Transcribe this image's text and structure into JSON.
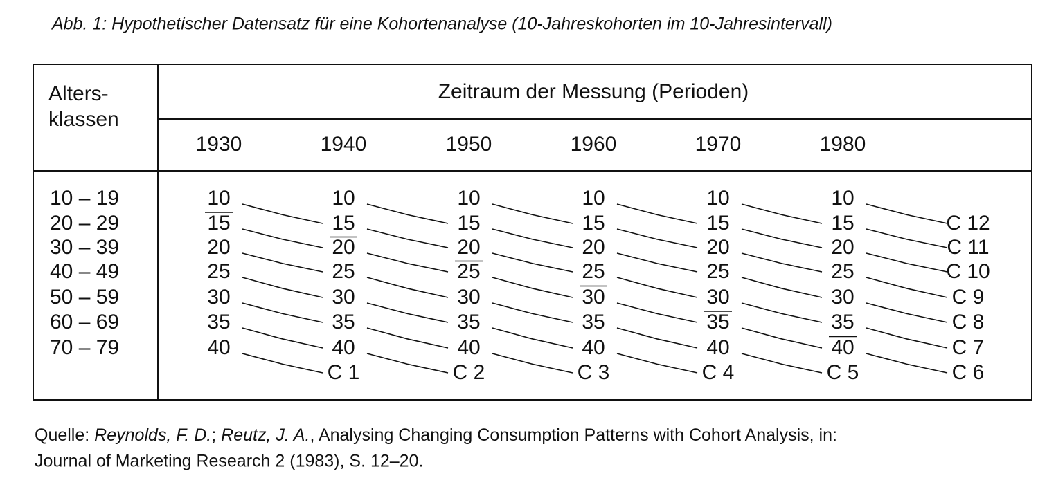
{
  "title": "Abb. 1: Hypothetischer Datensatz für eine Kohortenanalyse (10-Jahreskohorten im 10-Jahresintervall)",
  "table": {
    "row_header": [
      "Alters-",
      "klassen"
    ],
    "period_header": "Zeitraum der Messung (Perioden)",
    "periods": [
      1930,
      1940,
      1950,
      1960,
      1970,
      1980
    ],
    "age_classes": [
      "10 – 19",
      "20 – 29",
      "30 – 39",
      "40 – 49",
      "50 – 59",
      "60 – 69",
      "70 – 79"
    ],
    "columns": [
      [
        10,
        15,
        20,
        25,
        30,
        35,
        40
      ],
      [
        10,
        15,
        20,
        25,
        30,
        35,
        40
      ],
      [
        10,
        15,
        20,
        25,
        30,
        35,
        40
      ],
      [
        10,
        15,
        20,
        25,
        30,
        35,
        40
      ],
      [
        10,
        15,
        20,
        25,
        30,
        35,
        40
      ],
      [
        10,
        15,
        20,
        25,
        30,
        35,
        40
      ]
    ],
    "cohorts": [
      "C 1",
      "C 2",
      "C 3",
      "C 4",
      "C 5",
      "C 6",
      "C 7",
      "C 8",
      "C 9",
      "C 10",
      "C 11",
      "C 12"
    ]
  },
  "source": {
    "prefix": "Quelle: ",
    "author1": "Reynolds, F. D.",
    "sep": "; ",
    "author2": "Reutz, J. A.",
    "line1_rest": ", Analysing Changing Consumption Patterns with Cohort Analysis, in:",
    "line2": "Journal of Marketing Research 2 (1983), S. 12–20."
  }
}
